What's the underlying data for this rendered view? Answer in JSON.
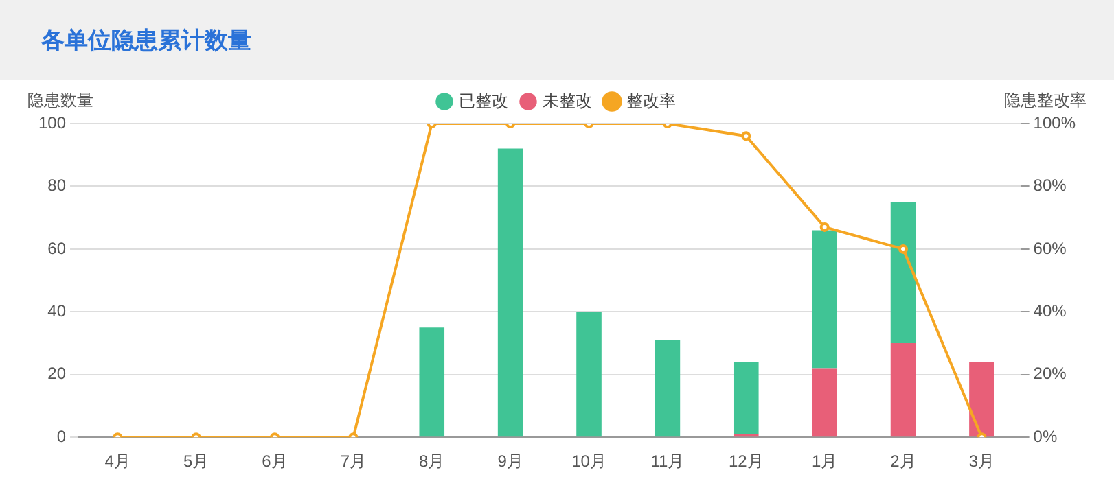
{
  "chart_data": {
    "type": "bar",
    "title": "各单位隐患累计数量",
    "ylabel": "隐患数量",
    "y2label": "隐患整改率",
    "categories": [
      "4月",
      "5月",
      "6月",
      "7月",
      "8月",
      "9月",
      "10月",
      "11月",
      "12月",
      "1月",
      "2月",
      "3月"
    ],
    "stacked": true,
    "series": [
      {
        "name": "未整改",
        "color": "#e85f78",
        "values": [
          0,
          0,
          0,
          0,
          0,
          0,
          0,
          0,
          1,
          22,
          30,
          24
        ]
      },
      {
        "name": "已整改",
        "color": "#40c495",
        "values": [
          0,
          0,
          0,
          0,
          35,
          92,
          40,
          31,
          23,
          44,
          45,
          0
        ]
      },
      {
        "name": "整改率",
        "type": "line",
        "axis": "y2",
        "color": "#f5a623",
        "marker": "circle",
        "values": [
          0,
          0,
          0,
          0,
          100,
          100,
          100,
          100,
          96,
          67,
          60,
          0
        ]
      }
    ],
    "ylim": [
      0,
      100
    ],
    "yticks": [
      0,
      20,
      40,
      60,
      80,
      100
    ],
    "y2lim": [
      0,
      100
    ],
    "y2ticks": [
      {
        "value": 0,
        "label": "0%"
      },
      {
        "value": 20,
        "label": "20%"
      },
      {
        "value": 40,
        "label": "40%"
      },
      {
        "value": 60,
        "label": "60%"
      },
      {
        "value": 80,
        "label": "80%"
      },
      {
        "value": 100,
        "label": "100%"
      }
    ],
    "grid": "y",
    "legend": "top"
  }
}
